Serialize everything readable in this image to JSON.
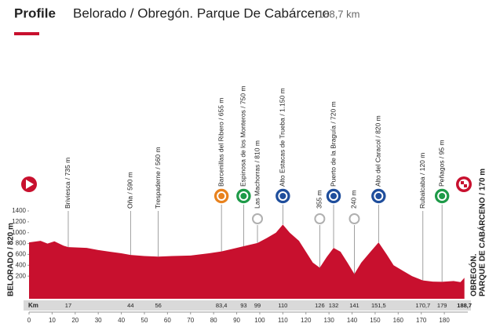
{
  "chart_data": {
    "type": "area",
    "title": "Profile",
    "subtitle": "Belorado / Obregón. Parque De Cabárceno",
    "distance": "188,7 km",
    "color": "#c8102e",
    "x": [
      0,
      5,
      8,
      11,
      15,
      17,
      25,
      30,
      35,
      40,
      44,
      50,
      56,
      62,
      70,
      78,
      83.4,
      88,
      93,
      99,
      103,
      107,
      110,
      113,
      117,
      120,
      123,
      126,
      129,
      132,
      135,
      138,
      141,
      144,
      148,
      151.5,
      155,
      158,
      162,
      166,
      170.7,
      175,
      179,
      184,
      187,
      188.7
    ],
    "values": [
      820,
      850,
      800,
      840,
      760,
      735,
      720,
      680,
      650,
      620,
      590,
      570,
      560,
      570,
      580,
      620,
      655,
      700,
      750,
      810,
      900,
      1000,
      1150,
      1000,
      850,
      650,
      450,
      355,
      550,
      720,
      650,
      450,
      240,
      450,
      650,
      820,
      600,
      400,
      300,
      200,
      120,
      100,
      95,
      110,
      90,
      170
    ],
    "xlim": [
      0,
      190
    ],
    "xticks": [
      0,
      10,
      20,
      30,
      40,
      50,
      60,
      70,
      80,
      90,
      100,
      110,
      120,
      130,
      140,
      150,
      160,
      170,
      180
    ],
    "ylim": [
      0,
      1400
    ],
    "yticks": [
      200,
      400,
      600,
      800,
      1000,
      1200,
      1400
    ],
    "km_label": "Km",
    "start": "BELORADO / 820 m",
    "finish": {
      "lines": [
        "OBREGÓN.",
        "PARQUE DE CABÁRCENO / 170 m"
      ],
      "km": {
        "value": 188.7,
        "label": "188,7"
      }
    },
    "waypoints": [
      {
        "label": "Briviesca / 735 m",
        "km": 17
      },
      {
        "label": "Oña / 590 m",
        "km": 44
      },
      {
        "label": "Trespaderne / 560 m",
        "km": 56
      },
      {
        "label": "Barcenillas del Ribero / 655 m",
        "km": {
          "value": 83.4,
          "label": "83,4"
        }
      },
      {
        "label": "Espinosa de los Monteros / 750 m",
        "km": 93
      },
      {
        "label": "Las Machorras / 810 m",
        "km": 99
      },
      {
        "label": "Alto Estacas de Trueba / 1.150 m",
        "km": 110
      },
      {
        "label": "355 m",
        "km": 126
      },
      {
        "label": "Puerto de la Braguía / 720 m",
        "km": 132
      },
      {
        "label": "240 m",
        "km": 141
      },
      {
        "label": "Alto del Caracol / 820 m",
        "km": {
          "value": 151.5,
          "label": "151,5"
        }
      },
      {
        "label": "Rubalcaba / 120 m",
        "km": {
          "value": 170.7,
          "label": "170,7"
        }
      },
      {
        "label": "Peñagos / 95 m",
        "km": 179
      }
    ]
  }
}
